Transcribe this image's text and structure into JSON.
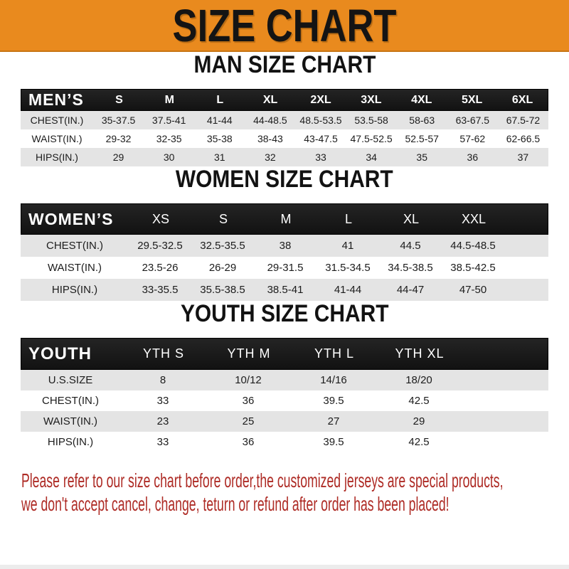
{
  "banner": {
    "title": "SIZE CHART"
  },
  "colors": {
    "banner_orange": "#E98A1E",
    "header_black": "#161616",
    "row_gray": "#E4E4E4",
    "footer_red": "#AE2B25"
  },
  "men": {
    "heading": "MAN SIZE CHART",
    "header": {
      "label": "MEN’S",
      "sizes": [
        "S",
        "M",
        "L",
        "XL",
        "2XL",
        "3XL",
        "4XL",
        "5XL",
        "6XL"
      ]
    },
    "rows": [
      {
        "label": "CHEST(IN.)",
        "values": [
          "35-37.5",
          "37.5-41",
          "41-44",
          "44-48.5",
          "48.5-53.5",
          "53.5-58",
          "58-63",
          "63-67.5",
          "67.5-72"
        ]
      },
      {
        "label": "WAIST(IN.)",
        "values": [
          "29-32",
          "32-35",
          "35-38",
          "38-43",
          "43-47.5",
          "47.5-52.5",
          "52.5-57",
          "57-62",
          "62-66.5"
        ]
      },
      {
        "label": "HIPS(IN.)",
        "values": [
          "29",
          "30",
          "31",
          "32",
          "33",
          "34",
          "35",
          "36",
          "37"
        ]
      }
    ]
  },
  "women": {
    "heading": "WOMEN SIZE CHART",
    "header": {
      "label": "WOMEN’S",
      "sizes": [
        "XS",
        "S",
        "M",
        "L",
        "XL",
        "XXL"
      ]
    },
    "rows": [
      {
        "label": "CHEST(IN.)",
        "values": [
          "29.5-32.5",
          "32.5-35.5",
          "38",
          "41",
          "44.5",
          "44.5-48.5"
        ]
      },
      {
        "label": "WAIST(IN.)",
        "values": [
          "23.5-26",
          "26-29",
          "29-31.5",
          "31.5-34.5",
          "34.5-38.5",
          "38.5-42.5"
        ]
      },
      {
        "label": "HIPS(IN.)",
        "values": [
          "33-35.5",
          "35.5-38.5",
          "38.5-41",
          "41-44",
          "44-47",
          "47-50"
        ]
      }
    ]
  },
  "youth": {
    "heading": "YOUTH SIZE CHART",
    "header": {
      "label": "YOUTH",
      "sizes": [
        "YTH S",
        "YTH M",
        "YTH L",
        "YTH XL"
      ]
    },
    "rows": [
      {
        "label": "U.S.SIZE",
        "values": [
          "8",
          "10/12",
          "14/16",
          "18/20"
        ]
      },
      {
        "label": "CHEST(IN.)",
        "values": [
          "33",
          "36",
          "39.5",
          "42.5"
        ]
      },
      {
        "label": "WAIST(IN.)",
        "values": [
          "23",
          "25",
          "27",
          "29"
        ]
      },
      {
        "label": "HIPS(IN.)",
        "values": [
          "33",
          "36",
          "39.5",
          "42.5"
        ]
      }
    ]
  },
  "footer": {
    "line1": "Please refer to our size chart before order,the customized jerseys are special products,",
    "line2": "we don't accept cancel, change, teturn or refund after order has been placed!"
  }
}
